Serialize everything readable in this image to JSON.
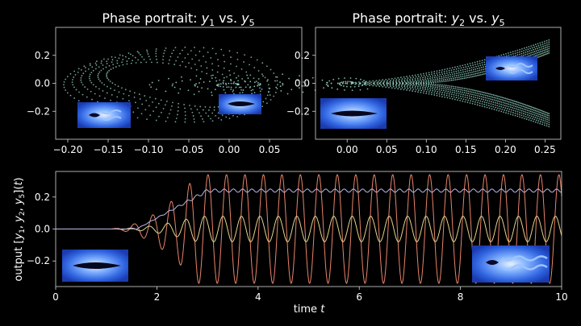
{
  "chart_data": [
    {
      "type": "scatter",
      "title_main": "Phase portrait: ",
      "title_v1": "y",
      "title_s1": "1",
      "title_mid": " vs. ",
      "title_v2": "y",
      "title_s2": "5",
      "xlim": [
        -0.215,
        0.09
      ],
      "ylim": [
        -0.4,
        0.4
      ],
      "xticks": [
        -0.2,
        -0.15,
        -0.1,
        -0.05,
        0.0,
        0.05
      ],
      "xtick_labels": [
        "−0.20",
        "−0.15",
        "−0.10",
        "−0.05",
        "0.00",
        "0.05"
      ],
      "yticks": [
        0.2,
        0.0,
        -0.2
      ],
      "ytick_labels": [
        "0.2",
        "0.0",
        "−0.2"
      ],
      "point_color": "#9adbc8",
      "attractor_y1_range": [
        -0.205,
        0.06
      ],
      "attractor_y5_range": [
        -0.32,
        0.3
      ],
      "transient_spiral_center": [
        0.005,
        -0.01
      ]
    },
    {
      "type": "scatter",
      "title_main": "Phase portrait: ",
      "title_v1": "y",
      "title_s1": "2",
      "title_mid": " vs. ",
      "title_v2": "y",
      "title_s2": "5",
      "xlim": [
        -0.04,
        0.27
      ],
      "ylim": [
        -0.4,
        0.4
      ],
      "xticks": [
        0.0,
        0.05,
        0.1,
        0.15,
        0.2,
        0.25
      ],
      "xtick_labels": [
        "0.00",
        "0.05",
        "0.10",
        "0.15",
        "0.20",
        "0.25"
      ],
      "yticks": [
        0.2,
        0.0,
        -0.2
      ],
      "ytick_labels": [
        "0.2",
        "0.0",
        "−0.2"
      ],
      "point_color": "#9adbc8",
      "attractor_y2_range": [
        -0.02,
        0.255
      ],
      "attractor_y5_range": [
        -0.32,
        0.3
      ]
    },
    {
      "type": "line",
      "xlabel": "time ",
      "xlabel_var": "t",
      "ylabel_parts": [
        "output [",
        "y",
        "1",
        ", ",
        "y",
        "2",
        ", ",
        "y",
        "5",
        "](",
        "t",
        ")"
      ],
      "xlim": [
        0,
        10
      ],
      "ylim": [
        -0.36,
        0.36
      ],
      "xticks": [
        0,
        2,
        4,
        6,
        8,
        10
      ],
      "xtick_labels": [
        "0",
        "2",
        "4",
        "6",
        "8",
        "10"
      ],
      "yticks": [
        0.2,
        0.0,
        -0.2
      ],
      "ytick_labels": [
        "0.2",
        "0.0",
        "−0.2"
      ],
      "onset_time": 1.0,
      "shedding_period": 0.365,
      "series": [
        {
          "color": "#e8846a",
          "settled_mean": 0.0,
          "settled_amplitude": 0.34
        },
        {
          "color": "#e3d58c",
          "settled_mean": 0.0,
          "settled_amplitude": 0.08
        },
        {
          "color": "#b8b8ea",
          "settled_mean": 0.24,
          "settled_amplitude": 0.01
        }
      ]
    }
  ]
}
